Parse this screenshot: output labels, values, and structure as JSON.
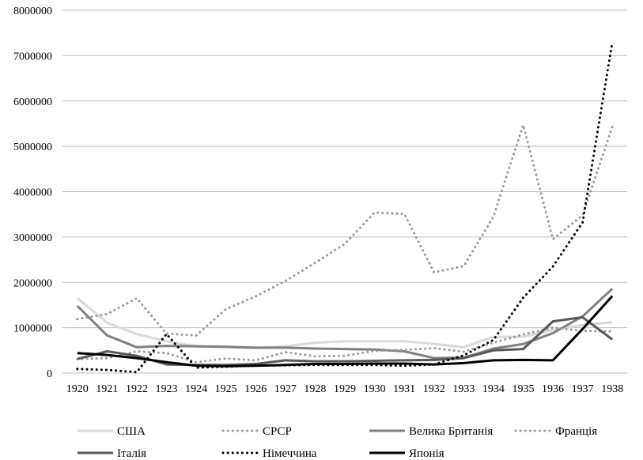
{
  "chart_data": {
    "type": "line",
    "title": "",
    "xlabel": "",
    "ylabel": "",
    "ylim": [
      0,
      8000000
    ],
    "y_ticks": [
      "0",
      "1000000",
      "2000000",
      "3000000",
      "4000000",
      "5000000",
      "6000000",
      "7000000",
      "8000000"
    ],
    "grid": "horizontal",
    "legend_position": "bottom",
    "categories": [
      "1920",
      "1921",
      "1922",
      "1923",
      "1924",
      "1925",
      "1926",
      "1927",
      "1928",
      "1929",
      "1930",
      "1931",
      "1932",
      "1933",
      "1934",
      "1935",
      "1936",
      "1937",
      "1938"
    ],
    "series": [
      {
        "name": "США",
        "color": "#d9d9d9",
        "style": "solid",
        "values": [
          1650000,
          1110000,
          860000,
          700000,
          590000,
          570000,
          550000,
          590000,
          670000,
          700000,
          700000,
          700000,
          640000,
          570000,
          800000,
          800000,
          950000,
          1060000,
          1120000
        ]
      },
      {
        "name": "СРСР",
        "color": "#999999",
        "style": "dotted",
        "values": [
          1190000,
          1300000,
          1650000,
          870000,
          830000,
          1410000,
          1690000,
          2030000,
          2430000,
          2850000,
          3540000,
          3510000,
          2220000,
          2360000,
          3450000,
          5470000,
          2950000,
          3480000,
          5430000
        ]
      },
      {
        "name": "Велика Британія",
        "color": "#808080",
        "style": "solid",
        "values": [
          1480000,
          830000,
          570000,
          600000,
          590000,
          580000,
          560000,
          560000,
          540000,
          530000,
          520000,
          480000,
          330000,
          340000,
          540000,
          640000,
          880000,
          1250000,
          1860000
        ]
      },
      {
        "name": "Франція",
        "color": "#999999",
        "style": "dotted",
        "values": [
          310000,
          330000,
          480000,
          440000,
          240000,
          320000,
          280000,
          460000,
          370000,
          380000,
          490000,
          510000,
          550000,
          470000,
          670000,
          850000,
          1000000,
          930000,
          920000
        ]
      },
      {
        "name": "Італія",
        "color": "#595959",
        "style": "solid",
        "values": [
          310000,
          480000,
          380000,
          190000,
          180000,
          180000,
          200000,
          280000,
          260000,
          260000,
          270000,
          280000,
          290000,
          330000,
          500000,
          530000,
          1140000,
          1230000,
          740000
        ]
      },
      {
        "name": "Німеччина",
        "color": "#000000",
        "style": "dotted",
        "values": [
          90000,
          70000,
          20000,
          860000,
          120000,
          140000,
          170000,
          170000,
          180000,
          180000,
          180000,
          160000,
          190000,
          390000,
          730000,
          1660000,
          2350000,
          3320000,
          7300000
        ]
      },
      {
        "name": "Японія",
        "color": "#000000",
        "style": "solid",
        "values": [
          440000,
          400000,
          330000,
          240000,
          160000,
          150000,
          160000,
          180000,
          200000,
          200000,
          210000,
          210000,
          190000,
          220000,
          280000,
          290000,
          280000,
          970000,
          1700000
        ]
      }
    ]
  }
}
